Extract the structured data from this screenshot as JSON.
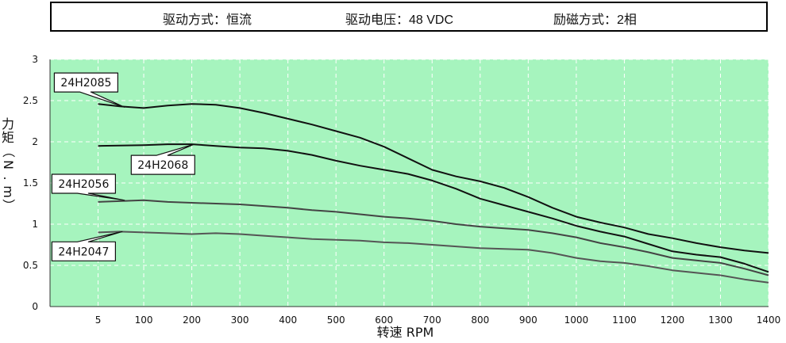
{
  "header": {
    "drive_mode": "驱动方式：恒流",
    "drive_voltage": "驱动电压：48 VDC",
    "excitation": "励磁方式：2相"
  },
  "chart_data": {
    "type": "line",
    "xlabel": "转速 RPM",
    "ylabel": "力矩（N.m）",
    "ylabel_chars": [
      "力",
      "矩",
      "（",
      "N",
      ".",
      "m",
      "）"
    ],
    "x_ticks": [
      5,
      100,
      200,
      300,
      400,
      500,
      600,
      700,
      800,
      900,
      1000,
      1100,
      1200,
      1300,
      1400
    ],
    "y_ticks": [
      0,
      0.5,
      1,
      1.5,
      2,
      2.5,
      3
    ],
    "xlim": [
      -95,
      1400
    ],
    "ylim": [
      0,
      3
    ],
    "grid": true,
    "background": "#a6f4be",
    "series": [
      {
        "name": "24H2085",
        "color": "#111111",
        "points": [
          [
            5,
            2.46
          ],
          [
            50,
            2.43
          ],
          [
            100,
            2.41
          ],
          [
            150,
            2.44
          ],
          [
            200,
            2.46
          ],
          [
            250,
            2.45
          ],
          [
            300,
            2.41
          ],
          [
            350,
            2.35
          ],
          [
            400,
            2.28
          ],
          [
            450,
            2.21
          ],
          [
            500,
            2.13
          ],
          [
            550,
            2.05
          ],
          [
            600,
            1.94
          ],
          [
            650,
            1.8
          ],
          [
            700,
            1.66
          ],
          [
            750,
            1.58
          ],
          [
            800,
            1.52
          ],
          [
            850,
            1.44
          ],
          [
            900,
            1.33
          ],
          [
            950,
            1.2
          ],
          [
            1000,
            1.09
          ],
          [
            1050,
            1.02
          ],
          [
            1100,
            0.96
          ],
          [
            1150,
            0.88
          ],
          [
            1200,
            0.83
          ],
          [
            1250,
            0.77
          ],
          [
            1300,
            0.72
          ],
          [
            1350,
            0.68
          ],
          [
            1400,
            0.65
          ]
        ]
      },
      {
        "name": "24H2068",
        "color": "#111111",
        "points": [
          [
            5,
            1.95
          ],
          [
            100,
            1.96
          ],
          [
            150,
            1.97
          ],
          [
            200,
            1.97
          ],
          [
            250,
            1.95
          ],
          [
            300,
            1.93
          ],
          [
            350,
            1.92
          ],
          [
            400,
            1.89
          ],
          [
            450,
            1.84
          ],
          [
            500,
            1.77
          ],
          [
            550,
            1.71
          ],
          [
            600,
            1.66
          ],
          [
            650,
            1.61
          ],
          [
            700,
            1.53
          ],
          [
            750,
            1.43
          ],
          [
            800,
            1.31
          ],
          [
            850,
            1.23
          ],
          [
            900,
            1.15
          ],
          [
            950,
            1.07
          ],
          [
            1000,
            0.98
          ],
          [
            1050,
            0.91
          ],
          [
            1100,
            0.85
          ],
          [
            1150,
            0.76
          ],
          [
            1200,
            0.67
          ],
          [
            1250,
            0.63
          ],
          [
            1300,
            0.6
          ],
          [
            1350,
            0.52
          ],
          [
            1400,
            0.42
          ]
        ]
      },
      {
        "name": "24H2056",
        "color": "#444444",
        "points": [
          [
            5,
            1.27
          ],
          [
            50,
            1.28
          ],
          [
            100,
            1.29
          ],
          [
            150,
            1.27
          ],
          [
            200,
            1.26
          ],
          [
            250,
            1.25
          ],
          [
            300,
            1.24
          ],
          [
            350,
            1.22
          ],
          [
            400,
            1.2
          ],
          [
            450,
            1.17
          ],
          [
            500,
            1.15
          ],
          [
            550,
            1.12
          ],
          [
            600,
            1.09
          ],
          [
            650,
            1.07
          ],
          [
            700,
            1.04
          ],
          [
            750,
            1.0
          ],
          [
            800,
            0.97
          ],
          [
            850,
            0.95
          ],
          [
            900,
            0.93
          ],
          [
            950,
            0.89
          ],
          [
            1000,
            0.84
          ],
          [
            1050,
            0.77
          ],
          [
            1100,
            0.72
          ],
          [
            1150,
            0.66
          ],
          [
            1200,
            0.59
          ],
          [
            1250,
            0.56
          ],
          [
            1300,
            0.53
          ],
          [
            1350,
            0.46
          ],
          [
            1400,
            0.38
          ]
        ]
      },
      {
        "name": "24H2047",
        "color": "#555555",
        "points": [
          [
            5,
            0.9
          ],
          [
            50,
            0.91
          ],
          [
            100,
            0.9
          ],
          [
            150,
            0.89
          ],
          [
            200,
            0.88
          ],
          [
            250,
            0.89
          ],
          [
            300,
            0.88
          ],
          [
            350,
            0.86
          ],
          [
            400,
            0.84
          ],
          [
            450,
            0.82
          ],
          [
            500,
            0.81
          ],
          [
            550,
            0.8
          ],
          [
            600,
            0.78
          ],
          [
            650,
            0.77
          ],
          [
            700,
            0.75
          ],
          [
            750,
            0.73
          ],
          [
            800,
            0.71
          ],
          [
            850,
            0.7
          ],
          [
            900,
            0.69
          ],
          [
            950,
            0.65
          ],
          [
            1000,
            0.59
          ],
          [
            1050,
            0.55
          ],
          [
            1100,
            0.53
          ],
          [
            1150,
            0.49
          ],
          [
            1200,
            0.44
          ],
          [
            1250,
            0.41
          ],
          [
            1300,
            0.38
          ],
          [
            1350,
            0.33
          ],
          [
            1400,
            0.29
          ]
        ]
      }
    ],
    "callouts": [
      {
        "label": "24H2085",
        "anchor": [
          60,
          2.42
        ],
        "box_at": [
          -20,
          2.72
        ],
        "pointer": "down"
      },
      {
        "label": "24H2068",
        "anchor": [
          205,
          1.97
        ],
        "box_at": [
          140,
          1.72
        ],
        "pointer": "up"
      },
      {
        "label": "24H2056",
        "anchor": [
          60,
          1.29
        ],
        "box_at": [
          -25,
          1.49
        ],
        "pointer": "down"
      },
      {
        "label": "24H2047",
        "anchor": [
          55,
          0.91
        ],
        "box_at": [
          -25,
          0.67
        ],
        "pointer": "up"
      }
    ]
  }
}
